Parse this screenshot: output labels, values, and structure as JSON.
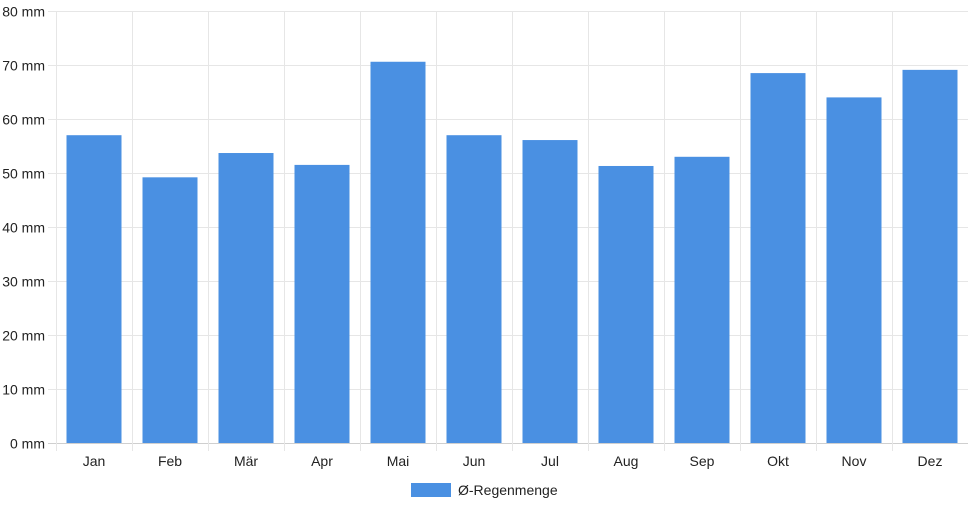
{
  "chart_data": {
    "type": "bar",
    "categories": [
      "Jan",
      "Feb",
      "Mär",
      "Apr",
      "Mai",
      "Jun",
      "Jul",
      "Aug",
      "Sep",
      "Okt",
      "Nov",
      "Dez"
    ],
    "series": [
      {
        "name": "Ø-Regenmenge",
        "values": [
          57.0,
          49.2,
          53.7,
          51.5,
          70.6,
          57.0,
          56.1,
          51.3,
          53.0,
          68.5,
          64.0,
          69.1
        ],
        "color": "#4a90e2"
      }
    ],
    "yticks": [
      "0 mm",
      "10 mm",
      "20 mm",
      "30 mm",
      "40 mm",
      "50 mm",
      "60 mm",
      "70 mm",
      "80 mm"
    ],
    "ylim": [
      0,
      80
    ],
    "grid": true,
    "legend_position": "bottom-center"
  }
}
